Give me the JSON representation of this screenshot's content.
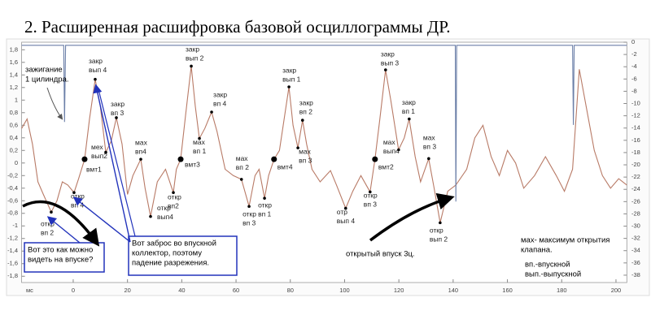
{
  "chart_data": {
    "type": "line",
    "title": "2. Расширенная расшифровка базовой осциллограммы ДР.",
    "x_label": "мс",
    "xlim": [
      -19,
      204
    ],
    "xticks": [
      0,
      20,
      40,
      60,
      80,
      100,
      120,
      140,
      160,
      180,
      200
    ],
    "ylim": [
      -1.9,
      1.92
    ],
    "yticks": [
      {
        "value": 1.8,
        "label": "1,8"
      },
      {
        "value": 1.6,
        "label": "1,6"
      },
      {
        "value": 1.4,
        "label": "1,4"
      },
      {
        "value": 1.2,
        "label": "1,2"
      },
      {
        "value": 1,
        "label": "1"
      },
      {
        "value": 0.8,
        "label": "0,8"
      },
      {
        "value": 0.6,
        "label": "0,6"
      },
      {
        "value": 0.4,
        "label": "0,4"
      },
      {
        "value": 0.2,
        "label": "0,2"
      },
      0,
      {
        "value": -0.2,
        "label": "-0,2"
      },
      {
        "value": -0.4,
        "label": "-0,4"
      },
      {
        "value": -0.6,
        "label": "-0,6"
      },
      {
        "value": -0.8,
        "label": "-0,8"
      },
      -1,
      {
        "value": -1.2,
        "label": "-1,2"
      },
      {
        "value": -1.4,
        "label": "-1,4"
      },
      {
        "value": -1.6,
        "label": "-1,6"
      },
      {
        "value": -1.8,
        "label": "-1,8"
      }
    ],
    "y2lim": [
      -39.2,
      0
    ],
    "y2ticks": [
      0,
      -2,
      -4,
      -6,
      -8,
      -10,
      -12,
      -14,
      -16,
      -18,
      -20,
      -22,
      -24,
      -26,
      -28,
      -30,
      -32,
      -34,
      -36,
      -38
    ],
    "series": [
      {
        "color": "#b87a66",
        "x": [
          -19,
          -17,
          -15,
          -13,
          -11,
          -8.1,
          -6,
          -4,
          -2,
          0.3,
          2,
          4.2,
          6,
          8.1,
          10,
          12,
          14,
          15.9,
          18,
          20,
          22,
          24.9,
          26.5,
          28.5,
          31,
          34,
          36.9,
          38,
          39.6,
          41.5,
          43.5,
          45,
          46.5,
          48.5,
          51,
          53,
          56,
          59,
          62,
          64.8,
          67,
          68.5,
          70.5,
          72,
          74,
          76,
          79.5,
          81,
          82.8,
          84.5,
          86,
          88,
          91,
          94.8,
          97,
          100.4,
          103,
          106,
          109.4,
          111.2,
          113,
          115.1,
          117,
          119.9,
          122,
          123.8,
          126,
          128,
          131,
          133,
          135.2,
          138,
          141,
          145,
          148,
          151,
          154,
          157,
          160,
          163,
          166,
          170,
          174,
          178,
          181,
          184,
          186.5,
          189,
          192,
          195,
          198,
          201,
          204
        ],
        "values": [
          0.55,
          0.7,
          0.3,
          -0.3,
          -0.5,
          -0.78,
          -0.6,
          -0.3,
          -0.35,
          -0.47,
          -0.25,
          0.06,
          0.7,
          1.33,
          0.9,
          0.17,
          0.35,
          0.72,
          0.3,
          -0.5,
          -0.2,
          0.06,
          -0.4,
          -0.85,
          -0.3,
          -0.1,
          -0.47,
          -0.1,
          0.06,
          0.8,
          1.54,
          0.9,
          0.39,
          0.55,
          0.81,
          0.5,
          -0.1,
          -0.2,
          -0.26,
          -0.69,
          -0.2,
          -0.1,
          -0.56,
          -0.2,
          0.06,
          0.2,
          1.21,
          0.6,
          0.24,
          0.68,
          0.3,
          -0.1,
          -0.3,
          -0.12,
          -0.35,
          -0.72,
          -0.45,
          -0.2,
          -0.46,
          0.06,
          0.7,
          1.48,
          1.0,
          0.21,
          0.4,
          0.7,
          0.1,
          -0.3,
          0.07,
          -0.4,
          -0.95,
          -0.45,
          -0.35,
          -0.1,
          0.4,
          0.6,
          0.1,
          -0.2,
          0.2,
          0,
          -0.4,
          -0.2,
          0.1,
          -0.2,
          -0.45,
          -0.1,
          1.49,
          0.9,
          0.2,
          -0.2,
          -0.4,
          -0.25,
          -0.35
        ]
      },
      {
        "color": "#6b7fa8",
        "axis": "y2",
        "x": [
          -19,
          -3.5,
          -3.2,
          -2.8,
          140.8,
          141,
          141.3,
          184,
          184.3,
          184.6,
          204
        ],
        "values": [
          -0.5,
          -0.5,
          -13,
          -0.5,
          -0.5,
          -26,
          -0.5,
          -0.5,
          -13.5,
          -0.5,
          -0.5
        ]
      }
    ],
    "annotations": [
      {
        "lines": [
          "закр",
          "вып 4"
        ],
        "x": 8.1,
        "y": 1.33
      },
      {
        "lines": [
          "мех",
          "вып2"
        ],
        "x": 12,
        "y": 0.17
      },
      {
        "lines": [
          "закр",
          "вп 3"
        ],
        "x": 15.9,
        "y": 0.72
      },
      {
        "lines": [
          "вмт1"
        ],
        "x": 4.2,
        "y": 0.06
      },
      {
        "lines": [
          "откр",
          "вп 4"
        ],
        "x": 0.3,
        "y": -0.47
      },
      {
        "lines": [
          "откр",
          "вп 2"
        ],
        "x": -8.1,
        "y": -0.78
      },
      {
        "lines": [
          "мах",
          "вп4"
        ],
        "x": 24.9,
        "y": 0.06
      },
      {
        "lines": [
          "откр",
          "вып4"
        ],
        "x": 28.5,
        "y": -0.85
      },
      {
        "lines": [
          "откр",
          "вп2"
        ],
        "x": 36.9,
        "y": -0.47
      },
      {
        "lines": [
          "вмт3"
        ],
        "x": 39.6,
        "y": 0.06
      },
      {
        "lines": [
          "закр",
          "вып 2"
        ],
        "x": 43.5,
        "y": 1.54
      },
      {
        "lines": [
          "мах",
          "вп 1"
        ],
        "x": 46.5,
        "y": 0.39
      },
      {
        "lines": [
          "закр",
          "вп 4"
        ],
        "x": 51,
        "y": 0.81
      },
      {
        "lines": [
          "мах",
          "вп 2"
        ],
        "x": 62,
        "y": -0.26
      },
      {
        "lines": [
          "откр",
          "вп 3"
        ],
        "x": 64.8,
        "y": -0.69
      },
      {
        "lines": [
          "откр",
          "вп 1"
        ],
        "x": 70.5,
        "y": -0.56
      },
      {
        "lines": [
          "вмт4"
        ],
        "x": 74,
        "y": 0.06
      },
      {
        "lines": [
          "закр",
          "вып 1"
        ],
        "x": 79.5,
        "y": 1.21
      },
      {
        "lines": [
          "мах",
          "вп 3"
        ],
        "x": 82.8,
        "y": 0.24
      },
      {
        "lines": [
          "закр",
          "вп 2"
        ],
        "x": 84.5,
        "y": 0.68
      },
      {
        "lines": [
          "отр",
          "вып 4"
        ],
        "x": 100.4,
        "y": -0.72
      },
      {
        "lines": [
          "откр",
          "вп 3"
        ],
        "x": 109.4,
        "y": -0.46
      },
      {
        "lines": [
          "вмт2"
        ],
        "x": 111.2,
        "y": 0.06
      },
      {
        "lines": [
          "мах",
          "вып4"
        ],
        "x": 119.9,
        "y": 0.21
      },
      {
        "lines": [
          "закр",
          "вып 3"
        ],
        "x": 115.1,
        "y": 1.48
      },
      {
        "lines": [
          "закр",
          "вп 1"
        ],
        "x": 123.8,
        "y": 0.7
      },
      {
        "lines": [
          "мах",
          "вп 3"
        ],
        "x": 131,
        "y": 0.07
      },
      {
        "lines": [
          "откр",
          "вып 2"
        ],
        "x": 135.2,
        "y": -0.95
      }
    ],
    "notes": [
      {
        "lines": [
          "Вот это как можно",
          "видеть на впуске?"
        ]
      },
      {
        "lines": [
          "Вот заброс во впускной",
          "коллектор, поэтому",
          "падение разрежения."
        ]
      },
      {
        "lines": [
          "зажигание",
          "1 цилиндра."
        ]
      },
      {
        "lines": [
          "открытый впуск 3ц."
        ]
      },
      {
        "lines": [
          "мах- максимум открытия",
          "клапана."
        ]
      },
      {
        "lines": [
          "вп.-впускной",
          "вып.-выпускной"
        ]
      }
    ]
  }
}
